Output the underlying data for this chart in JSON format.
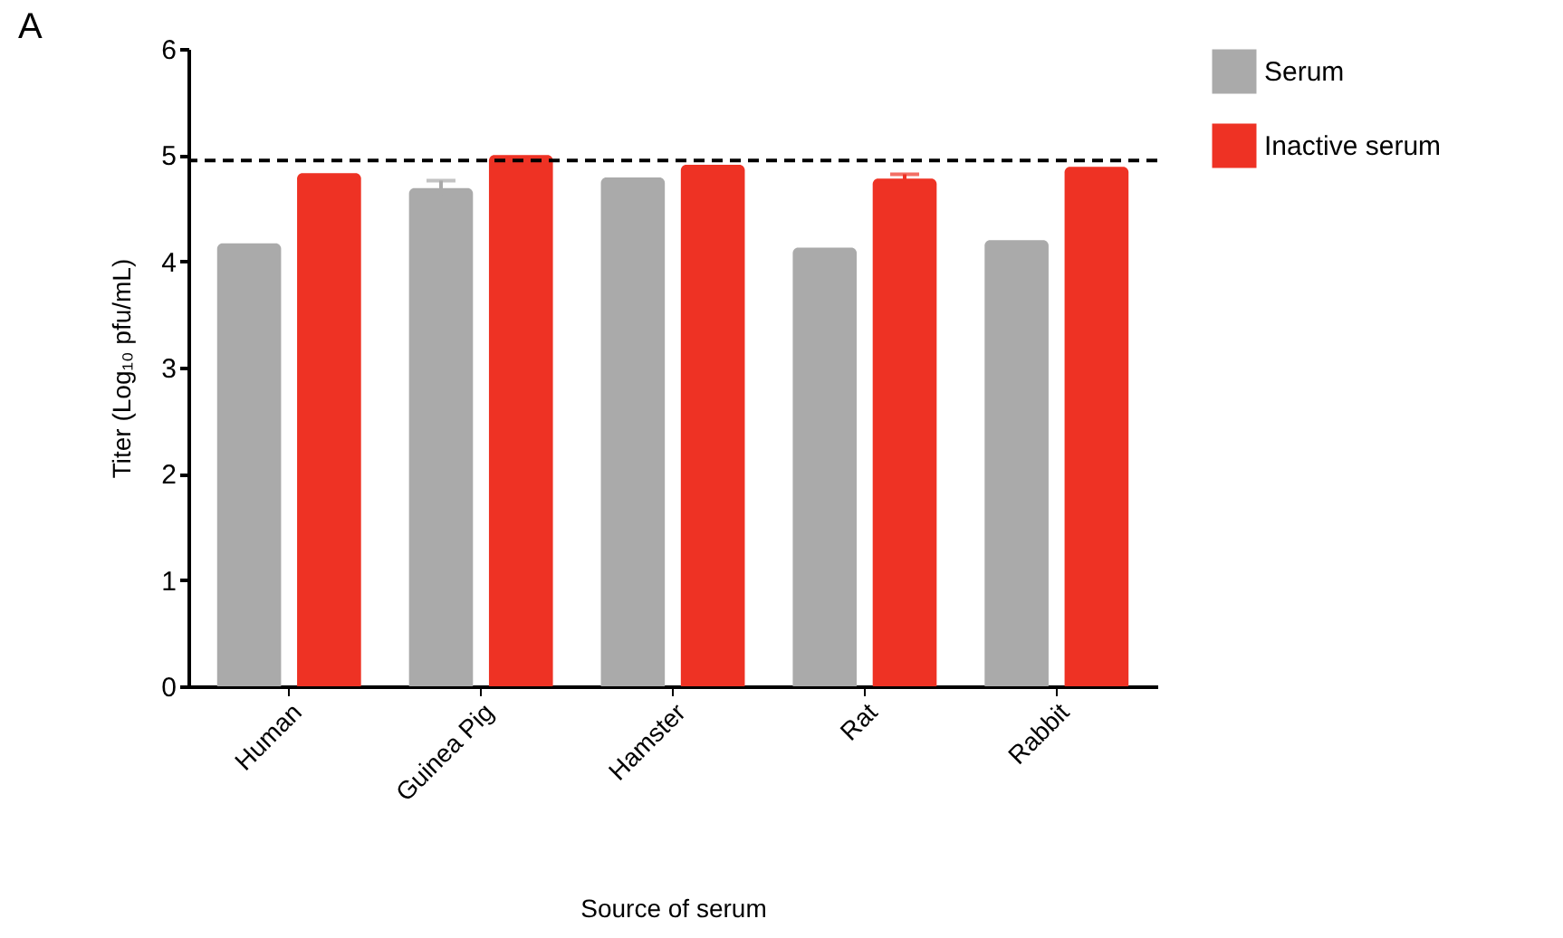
{
  "chart_data": {
    "type": "bar",
    "annotations": [
      "A"
    ],
    "xlabel": "Source of serum",
    "ylabel": "Titer (Log₁₀ pfu/mL)",
    "categories": [
      "Human",
      "Guinea Pig",
      "Hamster",
      "Rat",
      "Rabbit"
    ],
    "series": [
      {
        "name": "Serum",
        "color": "#aaaaaa",
        "values": [
          4.17,
          4.69,
          4.79,
          4.13,
          4.2
        ],
        "errors": [
          null,
          0.07,
          null,
          null,
          null
        ]
      },
      {
        "name": "Inactive serum",
        "color": "#ee3224",
        "values": [
          4.83,
          5.0,
          4.91,
          4.78,
          4.89
        ],
        "errors": [
          null,
          null,
          null,
          0.04,
          null
        ]
      }
    ],
    "ylim": [
      0,
      6
    ],
    "yticks": [
      0,
      1,
      2,
      3,
      4,
      5,
      6
    ],
    "grid": false,
    "legend": "right",
    "ref_lines": [
      {
        "axis": "y",
        "value": 4.95,
        "line_style": "dashed",
        "color": "#000000"
      }
    ]
  }
}
